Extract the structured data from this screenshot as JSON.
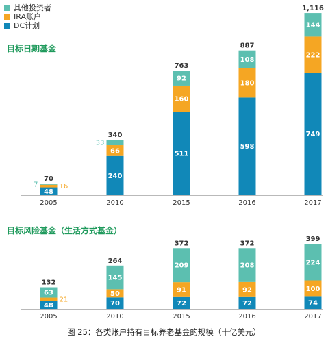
{
  "chart_data": [
    {
      "type": "stacked-bar",
      "title": "目标日期基金",
      "categories": [
        "2005",
        "2010",
        "2015",
        "2016",
        "2017"
      ],
      "totals": [
        "70",
        "340",
        "763",
        "887",
        "1,116"
      ],
      "series": [
        {
          "name": "DC计划",
          "values": [
            48,
            240,
            511,
            598,
            749
          ]
        },
        {
          "name": "IRA账户",
          "values": [
            16,
            66,
            160,
            180,
            222
          ]
        },
        {
          "name": "其他投资者",
          "values": [
            7,
            33,
            92,
            108,
            144
          ]
        }
      ]
    },
    {
      "type": "stacked-bar",
      "title": "目标风险基金（生活方式基金）",
      "categories": [
        "2005",
        "2010",
        "2015",
        "2016",
        "2017"
      ],
      "totals": [
        "132",
        "264",
        "372",
        "372",
        "399"
      ],
      "series": [
        {
          "name": "DC计划",
          "values": [
            48,
            70,
            72,
            72,
            74
          ]
        },
        {
          "name": "IRA账户",
          "values": [
            21,
            50,
            91,
            92,
            100
          ]
        },
        {
          "name": "其他投资者",
          "values": [
            63,
            145,
            209,
            208,
            224
          ]
        }
      ]
    }
  ],
  "legend": [
    {
      "label": "其他投资者",
      "color": "#5cbfb0"
    },
    {
      "label": "IRA账户",
      "color": "#f5a623"
    },
    {
      "label": "DC计划",
      "color": "#1188b8"
    }
  ],
  "caption": "图 25：各类账户持有目标养老基金的规模（十亿美元）"
}
